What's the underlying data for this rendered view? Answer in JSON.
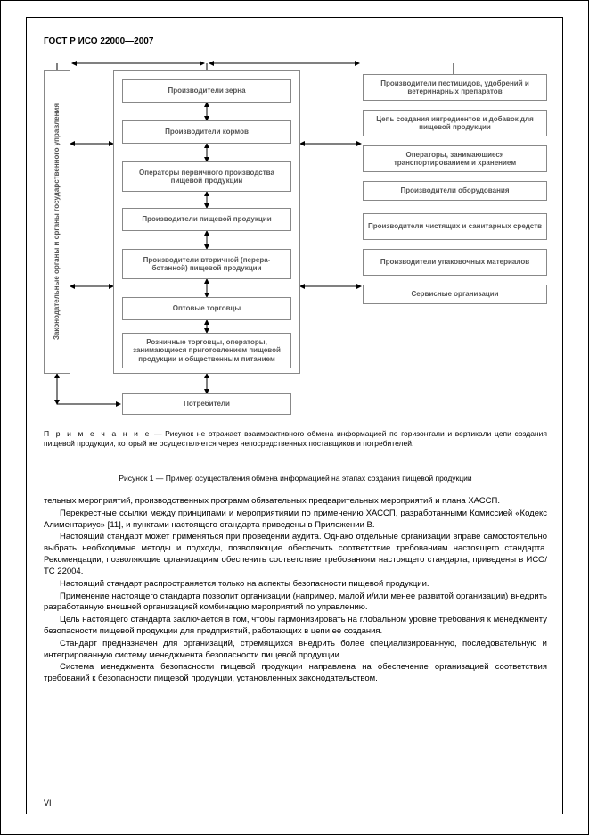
{
  "doc_title": "ГОСТ Р ИСО 22000—2007",
  "page_number": "VI",
  "diagram": {
    "gov_label": "Законодательные органы и органы государственного управления",
    "chain_boxes": [
      "Производители зерна",
      "Производители кормов",
      "Операторы первичного производства пищевой продукции",
      "Производители пищевой продукции",
      "Производители вторичной (перера-ботанной) пищевой продукции",
      "Оптовые торговцы",
      "Розничные торговцы, операторы, занимающиеся приготовлением пищевой продукции и общественным питанием"
    ],
    "consumers": "Потребители",
    "right_boxes": [
      "Производители пестицидов, удобрений и ветеринарных препаратов",
      "Цепь создания ингредиентов и добавок для пищевой продукции",
      "Операторы, занимающиеся транспортированием и хранением",
      "Производители оборудования",
      "Производители чистящих и санитарных средств",
      "Производители упаковочных материалов",
      "Сервисные организации"
    ]
  },
  "note_label": "П р и м е ч а н и е",
  "note_text": " — Рисунок не отражает взаимоактивного обмена информацией по горизонтали и вертикали цепи создания пищевой продукции, который не осуществляется через непосредственных поставщиков и потребителей.",
  "caption": "Рисунок 1 — Пример осуществления обмена информацией на этапах создания пищевой продукции",
  "paragraphs": [
    "тельных мероприятий, производственных программ обязательных предварительных мероприятий и плана ХАССП.",
    "Перекрестные ссылки между принципами и мероприятиями по применению ХАССП, разработанными Комиссией «Кодекс Алиментариус» [11], и пунктами настоящего стандарта приведены в Приложении В.",
    "Настоящий стандарт может применяться при проведении аудита. Однако отдельные организации вправе самостоятельно выбрать необходимые методы и подходы, позволяющие обеспечить соответствие требованиям настоящего стандарта. Рекомендации, позволяющие организациям обеспечить соответствие требованиям настоящего стандарта, приведены в ИСО/ТС 22004.",
    "Настоящий стандарт распространяется только на аспекты безопасности пищевой продукции.",
    "Применение настоящего стандарта позволит организации (например, малой и/или менее развитой организации) внедрить разработанную внешней организацией комбинацию мероприятий по управлению.",
    "Цель настоящего стандарта заключается в том, чтобы гармонизировать на глобальном уровне требования к менеджменту безопасности пищевой продукции для предприятий, работающих в цепи ее создания.",
    "Стандарт предназначен для организаций, стремящихся внедрить более специализированную, последовательную и интегрированную систему менеджмента безопасности пищевой продукции.",
    "Система менеджмента безопасности пищевой продукции направлена на обеспечение организацией соответствия требований к безопасности пищевой продукции, установленных законодательством."
  ],
  "style": {
    "chain_positions": [
      28,
      74,
      120,
      172,
      218,
      272,
      312
    ],
    "chain_heights": [
      26,
      26,
      34,
      26,
      34,
      26,
      40
    ],
    "right_positions": [
      22,
      62,
      102,
      142,
      178,
      218,
      258
    ],
    "right_heights": [
      30,
      30,
      30,
      22,
      30,
      30,
      22
    ],
    "arrow_color": "#000000",
    "box_border": "#888888"
  }
}
